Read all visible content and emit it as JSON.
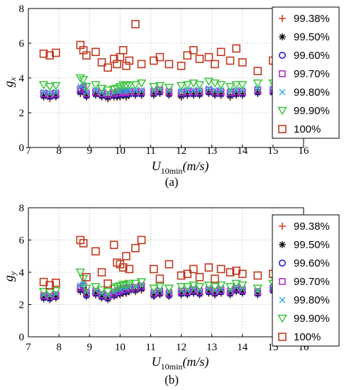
{
  "chart_data": [
    {
      "type": "scatter",
      "panel_label": "(a)",
      "ylabel_main": "g",
      "ylabel_sub": "x",
      "xlabel_main": "U",
      "xlabel_sub": "10min",
      "xlabel_unit": "(m/s)",
      "xlim": [
        7,
        16
      ],
      "ylim": [
        0,
        8
      ],
      "xticks": [
        7,
        8,
        9,
        10,
        11,
        12,
        13,
        14,
        15,
        16
      ],
      "yticks": [
        0,
        2,
        4,
        6,
        8
      ],
      "grid": true,
      "legend_position": "right",
      "x": [
        7.5,
        7.7,
        7.9,
        8.7,
        8.8,
        8.9,
        9.2,
        9.4,
        9.6,
        9.8,
        9.9,
        10.0,
        10.1,
        10.2,
        10.3,
        10.5,
        10.7,
        11.1,
        11.3,
        11.6,
        12.0,
        12.2,
        12.4,
        12.6,
        12.9,
        13.1,
        13.3,
        13.6,
        13.8,
        14.0,
        14.5,
        15.0,
        15.1
      ],
      "series": [
        {
          "name": "99.38%",
          "marker": "plus",
          "color": "#d23a1e",
          "values": [
            2.9,
            2.8,
            2.9,
            3.1,
            3.2,
            2.9,
            3.0,
            2.9,
            2.8,
            2.9,
            2.9,
            2.9,
            3.0,
            2.9,
            3.0,
            3.0,
            3.0,
            3.0,
            3.1,
            3.0,
            2.9,
            3.0,
            3.0,
            3.0,
            3.1,
            3.0,
            3.0,
            2.9,
            3.0,
            3.0,
            3.1,
            3.1,
            3.0
          ]
        },
        {
          "name": "99.50%",
          "marker": "asterisk",
          "color": "#000000",
          "values": [
            2.95,
            2.9,
            2.95,
            3.15,
            3.25,
            2.95,
            3.05,
            2.95,
            2.85,
            2.95,
            2.95,
            2.95,
            3.05,
            2.95,
            3.05,
            3.05,
            3.05,
            3.05,
            3.15,
            3.05,
            2.95,
            3.05,
            3.05,
            3.05,
            3.15,
            3.05,
            3.05,
            2.95,
            3.05,
            3.05,
            3.15,
            3.15,
            3.05
          ]
        },
        {
          "name": "99.60%",
          "marker": "circle",
          "color": "#1f1fcc",
          "values": [
            3.0,
            2.95,
            3.0,
            3.25,
            3.3,
            3.0,
            3.1,
            3.0,
            2.95,
            3.0,
            3.05,
            3.05,
            3.1,
            3.05,
            3.1,
            3.1,
            3.1,
            3.1,
            3.2,
            3.1,
            3.05,
            3.1,
            3.1,
            3.1,
            3.2,
            3.1,
            3.1,
            3.05,
            3.1,
            3.1,
            3.2,
            3.2,
            3.1
          ]
        },
        {
          "name": "99.70%",
          "marker": "square",
          "color": "#b02cc8",
          "values": [
            3.1,
            3.05,
            3.1,
            3.35,
            3.45,
            3.1,
            3.2,
            3.1,
            3.05,
            3.1,
            3.15,
            3.15,
            3.2,
            3.15,
            3.2,
            3.2,
            3.2,
            3.2,
            3.3,
            3.2,
            3.15,
            3.2,
            3.2,
            3.2,
            3.3,
            3.2,
            3.2,
            3.15,
            3.2,
            3.2,
            3.3,
            3.3,
            3.2
          ]
        },
        {
          "name": "99.80%",
          "marker": "x",
          "color": "#2aa7d8",
          "values": [
            3.2,
            3.15,
            3.2,
            3.5,
            3.6,
            3.2,
            3.3,
            3.2,
            3.15,
            3.2,
            3.25,
            3.25,
            3.3,
            3.25,
            3.3,
            3.3,
            3.3,
            3.3,
            3.4,
            3.3,
            3.25,
            3.3,
            3.3,
            3.3,
            3.4,
            3.3,
            3.3,
            3.25,
            3.3,
            3.3,
            3.4,
            3.4,
            3.3
          ]
        },
        {
          "name": "99.90%",
          "marker": "triangle-down",
          "color": "#3cc43c",
          "values": [
            3.6,
            3.5,
            3.55,
            4.0,
            3.9,
            3.5,
            3.6,
            3.4,
            3.3,
            3.35,
            3.4,
            3.5,
            3.6,
            3.55,
            3.6,
            3.6,
            3.7,
            3.5,
            3.55,
            3.45,
            3.55,
            3.6,
            3.7,
            3.6,
            3.8,
            3.7,
            3.6,
            3.5,
            3.6,
            3.6,
            3.7,
            3.7,
            3.6
          ]
        },
        {
          "name": "100%",
          "marker": "square-open",
          "color": "#c0381f",
          "values": [
            5.4,
            5.3,
            5.45,
            5.9,
            5.6,
            5.3,
            5.5,
            4.9,
            4.6,
            5.1,
            4.8,
            5.2,
            5.6,
            4.7,
            5.0,
            7.1,
            4.8,
            5.0,
            5.2,
            4.8,
            4.7,
            5.3,
            5.6,
            5.1,
            5.2,
            4.8,
            5.5,
            5.0,
            5.7,
            4.9,
            4.4,
            5.0,
            4.8
          ]
        }
      ]
    },
    {
      "type": "scatter",
      "panel_label": "(b)",
      "ylabel_main": "g",
      "ylabel_sub": "y",
      "xlabel_main": "U",
      "xlabel_sub": "10min",
      "xlabel_unit": "(m/s)",
      "xlim": [
        7,
        16
      ],
      "ylim": [
        0,
        8
      ],
      "xticks": [
        7,
        8,
        9,
        10,
        11,
        12,
        13,
        14,
        15,
        16
      ],
      "yticks": [
        0,
        2,
        4,
        6,
        8
      ],
      "grid": true,
      "legend_position": "right",
      "x": [
        7.5,
        7.7,
        7.9,
        8.7,
        8.8,
        8.9,
        9.2,
        9.4,
        9.6,
        9.8,
        9.9,
        10.0,
        10.1,
        10.2,
        10.3,
        10.5,
        10.7,
        11.1,
        11.3,
        11.6,
        12.0,
        12.2,
        12.4,
        12.6,
        12.9,
        13.1,
        13.3,
        13.6,
        13.8,
        14.0,
        14.5,
        15.0,
        15.1
      ],
      "series": [
        {
          "name": "99.38%",
          "marker": "plus",
          "color": "#d23a1e",
          "values": [
            2.35,
            2.3,
            2.4,
            2.8,
            2.9,
            2.5,
            2.6,
            2.4,
            2.3,
            2.5,
            2.6,
            2.6,
            2.7,
            2.7,
            2.8,
            2.8,
            2.9,
            2.5,
            2.6,
            2.5,
            2.6,
            2.6,
            2.7,
            2.6,
            2.7,
            2.6,
            2.7,
            2.6,
            2.8,
            2.7,
            2.6,
            2.8,
            2.9
          ]
        },
        {
          "name": "99.50%",
          "marker": "asterisk",
          "color": "#000000",
          "values": [
            2.4,
            2.35,
            2.45,
            2.85,
            2.95,
            2.55,
            2.65,
            2.45,
            2.35,
            2.55,
            2.65,
            2.65,
            2.75,
            2.75,
            2.85,
            2.85,
            2.95,
            2.55,
            2.65,
            2.55,
            2.65,
            2.65,
            2.75,
            2.65,
            2.75,
            2.65,
            2.75,
            2.65,
            2.85,
            2.75,
            2.65,
            2.85,
            2.95
          ]
        },
        {
          "name": "99.60%",
          "marker": "circle",
          "color": "#1f1fcc",
          "values": [
            2.45,
            2.4,
            2.5,
            2.95,
            3.05,
            2.6,
            2.7,
            2.5,
            2.4,
            2.6,
            2.7,
            2.75,
            2.85,
            2.85,
            2.95,
            2.95,
            3.05,
            2.6,
            2.7,
            2.6,
            2.7,
            2.7,
            2.8,
            2.7,
            2.8,
            2.7,
            2.8,
            2.7,
            2.9,
            2.8,
            2.7,
            2.9,
            3.0
          ]
        },
        {
          "name": "99.70%",
          "marker": "square",
          "color": "#b02cc8",
          "values": [
            2.55,
            2.5,
            2.6,
            3.05,
            3.15,
            2.7,
            2.8,
            2.6,
            2.5,
            2.7,
            2.8,
            2.85,
            2.95,
            2.95,
            3.05,
            3.05,
            3.15,
            2.7,
            2.8,
            2.7,
            2.8,
            2.8,
            2.9,
            2.8,
            2.9,
            2.8,
            2.9,
            2.8,
            3.0,
            2.9,
            2.8,
            3.0,
            3.1
          ]
        },
        {
          "name": "99.80%",
          "marker": "x",
          "color": "#2aa7d8",
          "values": [
            2.65,
            2.6,
            2.7,
            3.2,
            3.3,
            2.8,
            2.9,
            2.7,
            2.6,
            2.8,
            2.9,
            2.95,
            3.05,
            3.05,
            3.15,
            3.15,
            3.25,
            2.8,
            2.9,
            2.8,
            2.9,
            2.9,
            3.0,
            2.9,
            3.0,
            2.9,
            3.0,
            2.9,
            3.1,
            3.0,
            2.9,
            3.1,
            3.2
          ]
        },
        {
          "name": "99.90%",
          "marker": "triangle-down",
          "color": "#3cc43c",
          "values": [
            2.8,
            2.75,
            2.85,
            4.0,
            3.6,
            3.0,
            3.1,
            2.9,
            2.8,
            3.0,
            3.1,
            3.15,
            3.25,
            3.2,
            3.3,
            3.3,
            3.4,
            3.0,
            3.1,
            3.0,
            3.1,
            3.1,
            3.2,
            3.1,
            3.2,
            3.1,
            3.2,
            3.1,
            3.3,
            3.2,
            3.0,
            3.3,
            3.4
          ]
        },
        {
          "name": "100%",
          "marker": "square-open",
          "color": "#c0381f",
          "values": [
            3.4,
            3.2,
            3.35,
            6.0,
            5.8,
            3.7,
            5.3,
            4.0,
            3.3,
            5.7,
            4.6,
            4.5,
            4.3,
            5.0,
            4.2,
            5.5,
            6.0,
            4.2,
            3.6,
            4.5,
            3.8,
            3.9,
            4.2,
            3.7,
            4.3,
            3.6,
            4.2,
            4.0,
            4.1,
            3.9,
            3.8,
            3.9,
            4.1
          ]
        }
      ]
    }
  ]
}
